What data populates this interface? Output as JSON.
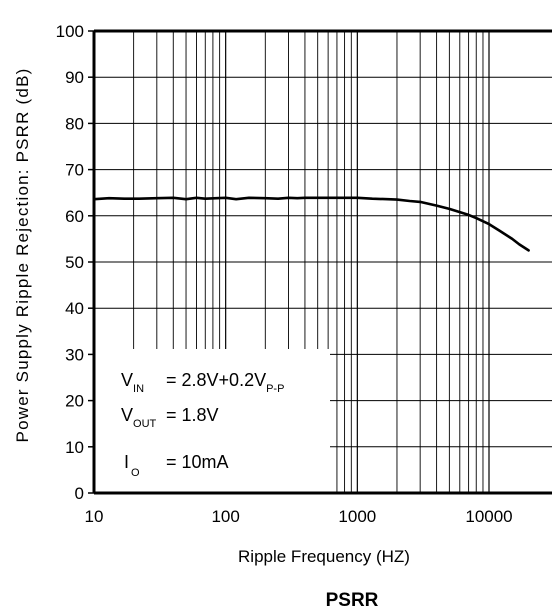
{
  "chart_data": {
    "type": "line",
    "title": "PSRR",
    "xlabel": "Ripple Frequency (HZ)",
    "ylabel": "Power Supply Ripple Rejection: PSRR (dB)",
    "xscale": "log",
    "xlim": [
      10,
      20000
    ],
    "ylim": [
      0,
      100
    ],
    "x_ticks": [
      10,
      100,
      1000,
      10000
    ],
    "x_tick_labels": [
      "10",
      "100",
      "1000",
      "10000"
    ],
    "y_ticks": [
      0,
      10,
      20,
      30,
      40,
      50,
      60,
      70,
      80,
      90,
      100
    ],
    "y_tick_labels": [
      "0",
      "10",
      "20",
      "30",
      "40",
      "50",
      "60",
      "70",
      "80",
      "90",
      "100"
    ],
    "grid": true,
    "series": [
      {
        "x": [
          10,
          13,
          17,
          22,
          30,
          40,
          50,
          60,
          70,
          85,
          100,
          120,
          150,
          200,
          250,
          300,
          350,
          400,
          500,
          700,
          1000,
          1300,
          1700,
          2000,
          2500,
          3000,
          4000,
          5000,
          6000,
          7000,
          8000,
          10000,
          12000,
          15000,
          17000,
          20000
        ],
        "y": [
          63.6,
          63.8,
          63.7,
          63.7,
          63.8,
          63.9,
          63.6,
          63.9,
          63.7,
          63.8,
          63.9,
          63.6,
          63.9,
          63.8,
          63.7,
          63.9,
          63.8,
          63.9,
          63.9,
          63.9,
          63.9,
          63.7,
          63.6,
          63.5,
          63.2,
          63.0,
          62.2,
          61.5,
          60.8,
          60.2,
          59.5,
          58.2,
          56.8,
          55.0,
          53.8,
          52.5
        ]
      }
    ],
    "annotation": {
      "lines": [
        {
          "main": "V",
          "sub": "IN",
          "value": "= 2.8V+0.2V",
          "value_sub": "P-P"
        },
        {
          "main": "V",
          "sub": "OUT",
          "value": "= 1.8V",
          "value_sub": ""
        },
        {
          "main": "I",
          "sub": "O",
          "value": "= 10mA",
          "value_sub": ""
        }
      ]
    }
  }
}
